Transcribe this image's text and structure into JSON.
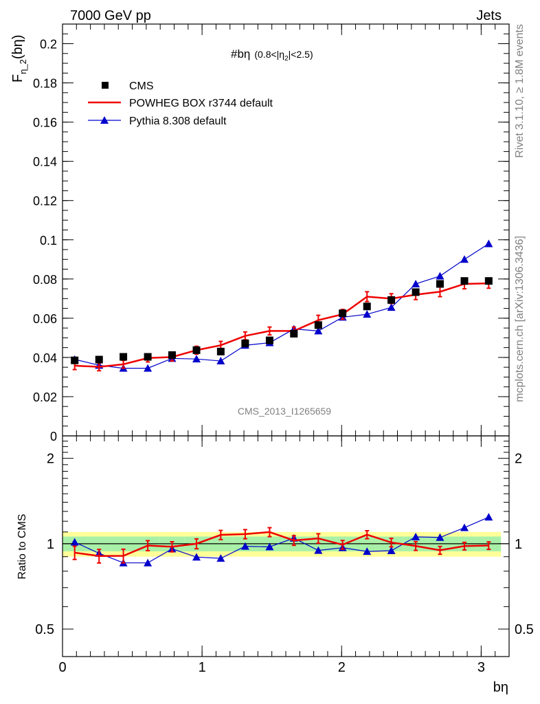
{
  "header": {
    "left": "7000 GeV pp",
    "right": "Jets"
  },
  "side_text": {
    "rivet": "Rivet 3.1.10, ≥ 1.8M events",
    "source": "mcplots.cern.ch [arXiv:1306.3436]"
  },
  "analysis_id": "CMS_2013_I1265659",
  "colors": {
    "cms": "#000000",
    "powheg": "#ee0000",
    "pythia": "#0000cc",
    "band_inner": "#a8f0a8",
    "band_outer": "#ffff99"
  },
  "chart_data": [
    {
      "type": "line",
      "panel": "main",
      "title": "#bη (0.8<|η₂|<2.5)",
      "title_main": "#bη",
      "title_sub": "(0.8<|η",
      "title_sub_index": "2",
      "title_sub_end": "|<2.5)",
      "ylabel": "F",
      "ylabel_sub": "η_2",
      "ylabel_arg": "(bη)",
      "xlim": [
        0,
        3.2
      ],
      "ylim": [
        0,
        0.21
      ],
      "yticks": [
        0,
        0.02,
        0.04,
        0.06,
        0.08,
        0.1,
        0.12,
        0.14,
        0.16,
        0.18,
        0.2
      ],
      "ytick_labels": [
        "0",
        "0.02",
        "0.04",
        "0.06",
        "0.08",
        "0.1",
        "0.12",
        "0.14",
        "0.16",
        "0.18",
        "0.2"
      ],
      "x": [
        0.087,
        0.262,
        0.436,
        0.611,
        0.785,
        0.96,
        1.134,
        1.309,
        1.484,
        1.658,
        1.833,
        2.007,
        2.182,
        2.356,
        2.531,
        2.705,
        2.88,
        3.054
      ],
      "legend": [
        "CMS",
        "POWHEG BOX r3744 default",
        "Pythia 8.308 default"
      ],
      "legend_placement": "top-left",
      "series": [
        {
          "name": "CMS",
          "style": "markers",
          "values": [
            0.0385,
            0.0389,
            0.0403,
            0.0403,
            0.0412,
            0.0437,
            0.043,
            0.0472,
            0.0487,
            0.0521,
            0.0565,
            0.0625,
            0.066,
            0.0693,
            0.0733,
            0.0775,
            0.079,
            0.079
          ]
        },
        {
          "name": "POWHEG BOX r3744 default",
          "style": "line",
          "values": [
            0.0358,
            0.0352,
            0.0365,
            0.0397,
            0.0402,
            0.0437,
            0.0462,
            0.051,
            0.0535,
            0.0535,
            0.059,
            0.062,
            0.071,
            0.07,
            0.072,
            0.0735,
            0.0775,
            0.0778
          ],
          "errors": [
            0.002,
            0.002,
            0.002,
            0.002,
            0.002,
            0.002,
            0.002,
            0.002,
            0.002,
            0.002,
            0.0025,
            0.0025,
            0.0025,
            0.0025,
            0.0025,
            0.0025,
            0.0025,
            0.0025
          ]
        },
        {
          "name": "Pythia 8.308 default",
          "style": "line-markers",
          "values": [
            0.039,
            0.036,
            0.0345,
            0.0345,
            0.0395,
            0.0392,
            0.0382,
            0.0462,
            0.0475,
            0.0545,
            0.0535,
            0.0605,
            0.062,
            0.0655,
            0.0775,
            0.0815,
            0.09,
            0.098
          ],
          "errors": [
            0.0008,
            0.0008,
            0.0008,
            0.0008,
            0.0008,
            0.0008,
            0.0008,
            0.001,
            0.001,
            0.001,
            0.001,
            0.001,
            0.001,
            0.001,
            0.0015,
            0.0015,
            0.0015,
            0.0015
          ]
        }
      ]
    },
    {
      "type": "line",
      "panel": "ratio",
      "xlabel": "bη",
      "ylabel": "Ratio to CMS",
      "ylim": [
        0.4,
        2.4
      ],
      "log_scale": true,
      "yticks": [
        0.5,
        1,
        2
      ],
      "ytick_labels": [
        "0.5",
        "1",
        "2"
      ],
      "xticks": [
        0,
        1,
        2,
        3
      ],
      "xtick_labels": [
        "0",
        "1",
        "2",
        "3"
      ],
      "band_inner": [
        0.94,
        1.06
      ],
      "band_outer": [
        0.9,
        1.1
      ],
      "series": [
        {
          "name": "POWHEG BOX r3744 default",
          "values": [
            0.93,
            0.905,
            0.906,
            0.985,
            0.976,
            1.0,
            1.074,
            1.081,
            1.099,
            1.027,
            1.044,
            0.992,
            1.076,
            1.01,
            0.982,
            0.948,
            0.981,
            0.985
          ],
          "errors": [
            0.05,
            0.05,
            0.05,
            0.04,
            0.04,
            0.04,
            0.04,
            0.04,
            0.04,
            0.04,
            0.04,
            0.035,
            0.035,
            0.035,
            0.035,
            0.03,
            0.03,
            0.03
          ]
        },
        {
          "name": "Pythia 8.308 default",
          "values": [
            1.013,
            0.925,
            0.856,
            0.856,
            0.959,
            0.897,
            0.888,
            0.979,
            0.975,
            1.046,
            0.947,
            0.968,
            0.939,
            0.945,
            1.057,
            1.052,
            1.139,
            1.241
          ],
          "errors": [
            0.02,
            0.02,
            0.02,
            0.02,
            0.02,
            0.02,
            0.02,
            0.02,
            0.02,
            0.02,
            0.02,
            0.02,
            0.02,
            0.02,
            0.02,
            0.02,
            0.02,
            0.02
          ]
        }
      ]
    }
  ]
}
